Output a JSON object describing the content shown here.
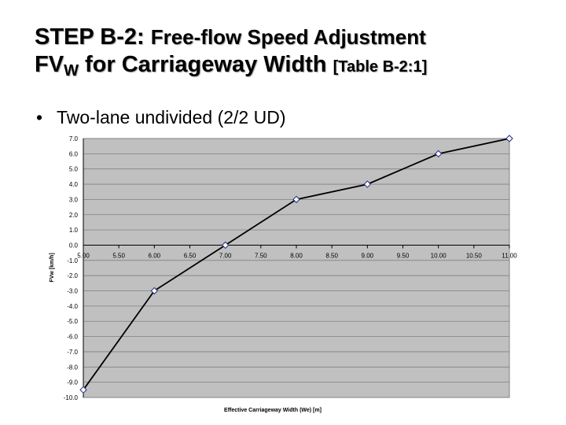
{
  "slide": {
    "title_line1_a": "STEP B-2: ",
    "title_line1_b": "Free-flow Speed Adjustment",
    "title_line2_a": "FV",
    "title_line2_sub": "W",
    "title_line2_b": " for Carriageway Width ",
    "title_line2_c": "[Table B-2:1]",
    "bullet_symbol": "•",
    "bullet_text": "Two-lane undivided (2/2 UD)"
  },
  "chart_data": {
    "type": "line",
    "title": "",
    "xlabel": "Effective Carriageway Width (We) [m]",
    "ylabel": "FVw [km/h]",
    "x": [
      5.0,
      6.0,
      7.0,
      8.0,
      9.0,
      10.0,
      11.0
    ],
    "series": [
      {
        "values": [
          -9.5,
          -3.0,
          0.0,
          3.0,
          4.0,
          6.0,
          7.0
        ]
      }
    ],
    "xlim": [
      5.0,
      11.0
    ],
    "ylim": [
      -10.0,
      7.0
    ],
    "x_ticks": [
      "5.00",
      "5.50",
      "6.00",
      "6.50",
      "7.00",
      "7.50",
      "8.00",
      "8.50",
      "9.00",
      "9.50",
      "10.00",
      "10.50",
      "11.00"
    ],
    "y_ticks": [
      "7.0",
      "6.0",
      "5.0",
      "4.0",
      "3.0",
      "2.0",
      "1.0",
      "0.0",
      "-1.0",
      "-2.0",
      "-3.0",
      "-4.0",
      "-5.0",
      "-6.0",
      "-7.0",
      "-8.0",
      "-9.0",
      "-10.0"
    ],
    "grid": true,
    "colors": {
      "plot_bg": "#c0c0c0",
      "line": "#000000",
      "marker_fill": "#ffffff",
      "marker_stroke": "#1f2a7a",
      "grid": "#808080"
    }
  }
}
